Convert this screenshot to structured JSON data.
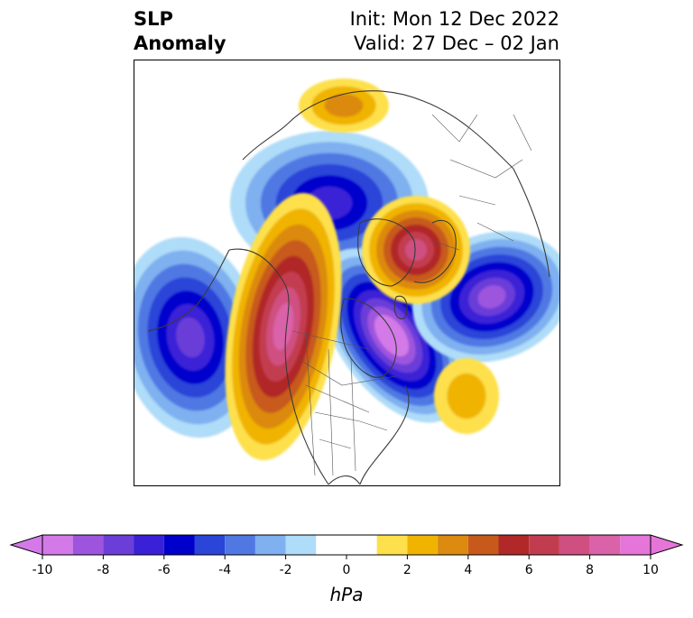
{
  "title": {
    "left_line1": "SLP",
    "left_line2": "Anomaly",
    "right_line1": "Init: Mon 12 Dec 2022",
    "right_line2": "Valid: 27 Dec – 02 Jan"
  },
  "colorbar": {
    "unit": "hPa",
    "ticks": [
      "-10",
      "-8",
      "-6",
      "-4",
      "-2",
      "0",
      "2",
      "4",
      "6",
      "8",
      "10"
    ],
    "tick_values": [
      -10,
      -8,
      -6,
      -4,
      -2,
      0,
      2,
      4,
      6,
      8,
      10
    ],
    "bins": [
      {
        "from": -10,
        "to": -9,
        "color": "#d37ae8"
      },
      {
        "from": -9,
        "to": -8,
        "color": "#9e55de"
      },
      {
        "from": -8,
        "to": -7,
        "color": "#6b3ed8"
      },
      {
        "from": -7,
        "to": -6,
        "color": "#3a20d6"
      },
      {
        "from": -6,
        "to": -5,
        "color": "#0000cd"
      },
      {
        "from": -5,
        "to": -4,
        "color": "#2a45d8"
      },
      {
        "from": -4,
        "to": -3,
        "color": "#4f78e3"
      },
      {
        "from": -3,
        "to": -2,
        "color": "#7fb0f0"
      },
      {
        "from": -2,
        "to": -1,
        "color": "#afdcf8"
      },
      {
        "from": -1,
        "to": 1,
        "color": "#ffffff"
      },
      {
        "from": 1,
        "to": 2,
        "color": "#fde04b"
      },
      {
        "from": 2,
        "to": 3,
        "color": "#f0b400"
      },
      {
        "from": 3,
        "to": 4,
        "color": "#dc8a10"
      },
      {
        "from": 4,
        "to": 5,
        "color": "#c75a1a"
      },
      {
        "from": 5,
        "to": 6,
        "color": "#b12828"
      },
      {
        "from": 6,
        "to": 7,
        "color": "#c23c50"
      },
      {
        "from": 7,
        "to": 8,
        "color": "#cf4f80"
      },
      {
        "from": 8,
        "to": 9,
        "color": "#d962a8"
      },
      {
        "from": 9,
        "to": 10,
        "color": "#e575d8"
      }
    ],
    "under_color": "#d37ae8",
    "over_color": "#e575d8"
  },
  "anomalies": [
    {
      "name": "north-pacific-low",
      "peak": -7,
      "sign": "negative"
    },
    {
      "name": "arctic-low",
      "peak": -6,
      "sign": "negative"
    },
    {
      "name": "canada-low",
      "peak": -10,
      "sign": "negative"
    },
    {
      "name": "atlantic-low",
      "peak": -8,
      "sign": "negative"
    },
    {
      "name": "west-coast-high",
      "peak": 8,
      "sign": "positive"
    },
    {
      "name": "europe-high",
      "peak": 7,
      "sign": "positive"
    },
    {
      "name": "siberia-high",
      "peak": 3,
      "sign": "positive"
    },
    {
      "name": "atlantic-subtropical-high",
      "peak": 2,
      "sign": "positive"
    }
  ]
}
